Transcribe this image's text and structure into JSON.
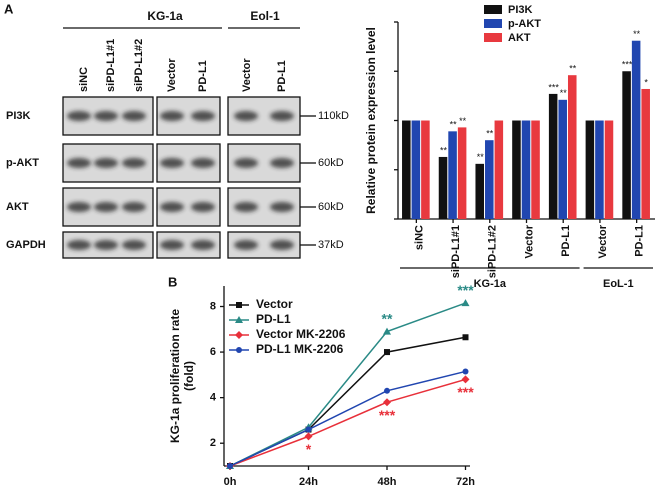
{
  "panel_a_blot": {
    "panel_label": "A",
    "groups": [
      "KG-1a",
      "Eol-1"
    ],
    "lanes": [
      "siNC",
      "siPD-L1#1",
      "siPD-L1#2",
      "Vector",
      "PD-L1",
      "Vector",
      "PD-L1"
    ],
    "rows": [
      "PI3K",
      "p-AKT",
      "AKT",
      "GAPDH"
    ],
    "sizes": [
      "110kD",
      "60kD",
      "60kD",
      "37kD"
    ]
  },
  "chart_data": [
    {
      "type": "bar",
      "ylabel": "Relative protein expression level",
      "categories": [
        "siNC",
        "siPD-L1#1",
        "siPD-L1#2",
        "Vector",
        "PD-L1",
        "Vector",
        "PD-L1"
      ],
      "groups": [
        {
          "name": "KG-1a",
          "count": 5
        },
        {
          "name": "EoL-1",
          "count": 2
        }
      ],
      "series": [
        {
          "name": "PI3K",
          "color": "#111111",
          "values": [
            1,
            0.63,
            0.56,
            1,
            1.27,
            1,
            1.5
          ],
          "annotations": [
            null,
            "**",
            "**",
            null,
            "***",
            null,
            "***"
          ]
        },
        {
          "name": "p-AKT",
          "color": "#2146b0",
          "values": [
            1,
            0.89,
            0.8,
            1,
            1.21,
            1,
            1.81
          ],
          "annotations": [
            null,
            "**",
            "**",
            null,
            "**",
            null,
            "**"
          ]
        },
        {
          "name": "AKT",
          "color": "#e8393f",
          "values": [
            1,
            0.93,
            1,
            1,
            1.46,
            1,
            1.32
          ],
          "annotations": [
            null,
            "**",
            null,
            null,
            "**",
            null,
            "*"
          ]
        }
      ],
      "ylim": [
        0,
        2
      ],
      "yticks": [
        0,
        0.5,
        1,
        1.5,
        2
      ],
      "show_ytick_labels": false
    },
    {
      "type": "line",
      "panel_label": "B",
      "ylabel": [
        "KG-1a proliferation rate",
        "(fold)"
      ],
      "categories": [
        "0h",
        "24h",
        "48h",
        "72h"
      ],
      "series": [
        {
          "name": "Vector",
          "color": "#111111",
          "marker": "square",
          "values": [
            1,
            2.6,
            6,
            6.65
          ],
          "annotations": [
            null,
            null,
            null,
            null
          ]
        },
        {
          "name": "PD-L1",
          "color": "#2a8a86",
          "marker": "triangle",
          "values": [
            1,
            2.7,
            6.9,
            8.15
          ],
          "annotations": [
            null,
            null,
            "**",
            "***"
          ],
          "annotation_side": "above"
        },
        {
          "name": "Vector MK-2206",
          "color": "#e8303a",
          "marker": "diamond",
          "values": [
            1,
            2.3,
            3.8,
            4.8
          ],
          "annotations": [
            null,
            "*",
            "***",
            "***"
          ],
          "annotation_side": "below"
        },
        {
          "name": "PD-L1 MK-2206",
          "color": "#2146b0",
          "marker": "circle",
          "values": [
            1,
            2.6,
            4.3,
            5.15
          ],
          "annotations": [
            null,
            null,
            null,
            null
          ]
        }
      ],
      "ylim": [
        1,
        8.9
      ],
      "yticks": [
        2,
        4,
        6,
        8
      ]
    }
  ]
}
